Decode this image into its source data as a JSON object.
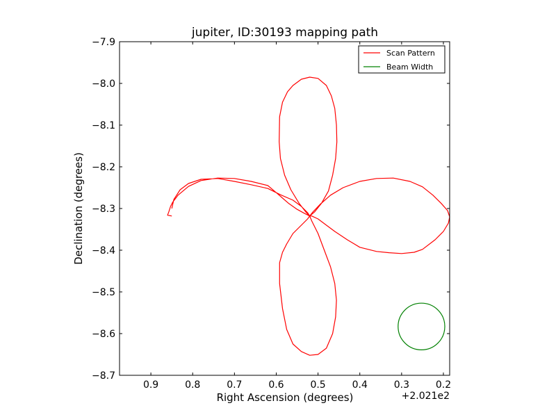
{
  "chart_data": {
    "type": "line",
    "title": "jupiter, ID:30193 mapping path",
    "xlabel": "Right Ascension (degrees)",
    "ylabel": "Declination (degrees)",
    "offset_text": "+2.021e2",
    "xlim": [
      0.975,
      0.185
    ],
    "ylim": [
      -8.7,
      -7.9
    ],
    "x_inverted": true,
    "xticks": [
      0.9,
      0.8,
      0.7,
      0.6,
      0.5,
      0.4,
      0.3,
      0.2
    ],
    "xtick_labels": [
      "0.9",
      "0.8",
      "0.7",
      "0.6",
      "0.5",
      "0.4",
      "0.3",
      "0.2"
    ],
    "yticks": [
      -7.9,
      -8.0,
      -8.1,
      -8.2,
      -8.3,
      -8.4,
      -8.5,
      -8.6,
      -8.7
    ],
    "ytick_labels": [
      "−7.9",
      "−8.0",
      "−8.1",
      "−8.2",
      "−8.3",
      "−8.4",
      "−8.5",
      "−8.6",
      "−8.7"
    ],
    "legend_position": "top-right",
    "grid": false,
    "series": [
      {
        "name": "Scan Pattern",
        "color": "#ff0000",
        "x": [
          0.85,
          0.86,
          0.857,
          0.853,
          0.848,
          0.835,
          0.81,
          0.78,
          0.74,
          0.7,
          0.66,
          0.62,
          0.6,
          0.585,
          0.57,
          0.55,
          0.532,
          0.52,
          0.508,
          0.492,
          0.475,
          0.465,
          0.458,
          0.455,
          0.456,
          0.46,
          0.468,
          0.48,
          0.5,
          0.52,
          0.54,
          0.56,
          0.573,
          0.585,
          0.592,
          0.593,
          0.59,
          0.58,
          0.565,
          0.545,
          0.528,
          0.52,
          0.512,
          0.495,
          0.47,
          0.44,
          0.4,
          0.36,
          0.32,
          0.28,
          0.25,
          0.225,
          0.205,
          0.19,
          0.185,
          0.188,
          0.2,
          0.22,
          0.25,
          0.27,
          0.3,
          0.33,
          0.36,
          0.4,
          0.43,
          0.46,
          0.48,
          0.5,
          0.515,
          0.52,
          0.525,
          0.54,
          0.56,
          0.575,
          0.585,
          0.592,
          0.592,
          0.585,
          0.575,
          0.56,
          0.54,
          0.52,
          0.5,
          0.48,
          0.465,
          0.458,
          0.456,
          0.46,
          0.47,
          0.485,
          0.5,
          0.515,
          0.52,
          0.525,
          0.54,
          0.56,
          0.59,
          0.62,
          0.66,
          0.7,
          0.74,
          0.78,
          0.81,
          0.83,
          0.845,
          0.85
        ],
        "y": [
          -8.318,
          -8.316,
          -8.308,
          -8.295,
          -8.285,
          -8.268,
          -8.247,
          -8.233,
          -8.227,
          -8.228,
          -8.235,
          -8.245,
          -8.262,
          -8.275,
          -8.288,
          -8.302,
          -8.312,
          -8.318,
          -8.308,
          -8.288,
          -8.258,
          -8.22,
          -8.18,
          -8.14,
          -8.1,
          -8.06,
          -8.03,
          -8.005,
          -7.988,
          -7.985,
          -7.99,
          -8.005,
          -8.02,
          -8.045,
          -8.08,
          -8.14,
          -8.18,
          -8.22,
          -8.255,
          -8.288,
          -8.31,
          -8.318,
          -8.308,
          -8.29,
          -8.268,
          -8.25,
          -8.235,
          -8.228,
          -8.227,
          -8.235,
          -8.248,
          -8.268,
          -8.288,
          -8.305,
          -8.32,
          -8.335,
          -8.355,
          -8.375,
          -8.398,
          -8.405,
          -8.408,
          -8.406,
          -8.403,
          -8.393,
          -8.375,
          -8.355,
          -8.34,
          -8.325,
          -8.318,
          -8.318,
          -8.325,
          -8.34,
          -8.36,
          -8.385,
          -8.405,
          -8.43,
          -8.48,
          -8.54,
          -8.59,
          -8.625,
          -8.643,
          -8.652,
          -8.65,
          -8.635,
          -8.6,
          -8.56,
          -8.52,
          -8.48,
          -8.44,
          -8.4,
          -8.36,
          -8.33,
          -8.318,
          -8.31,
          -8.295,
          -8.28,
          -8.267,
          -8.252,
          -8.243,
          -8.235,
          -8.228,
          -8.23,
          -8.24,
          -8.255,
          -8.278,
          -8.3
        ]
      },
      {
        "name": "Beam Width",
        "color": "#008000",
        "shape": "circle",
        "center": [
          0.2525,
          -8.583
        ],
        "radius_y": 0.056
      }
    ]
  }
}
